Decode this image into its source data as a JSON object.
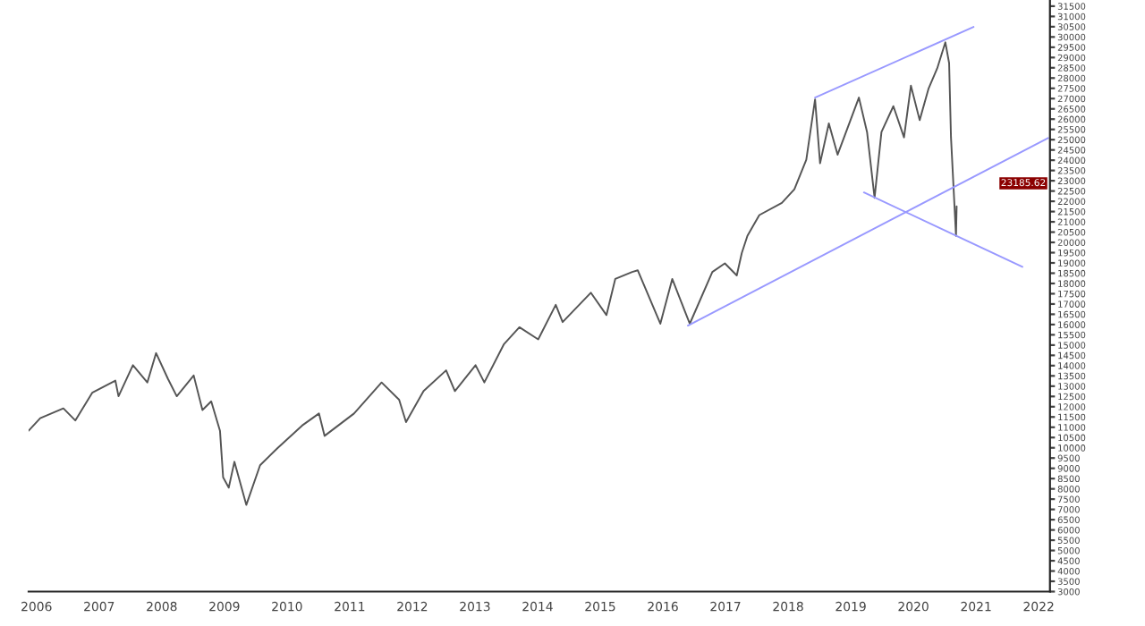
{
  "chart_data": {
    "type": "line",
    "series": [
      {
        "color": "#555555",
        "x": [
          2005.875,
          2006.06,
          2006.43,
          2006.62,
          2006.89,
          2007.26,
          2007.31,
          2007.54,
          2007.77,
          2007.91,
          2008.1,
          2008.24,
          2008.51,
          2008.65,
          2008.79,
          2008.93,
          2008.98,
          2009.07,
          2009.16,
          2009.35,
          2009.57,
          2009.85,
          2010.24,
          2010.51,
          2010.6,
          2011.07,
          2011.51,
          2011.79,
          2011.9,
          2012.18,
          2012.54,
          2012.68,
          2013.01,
          2013.15,
          2013.46,
          2013.71,
          2014.01,
          2014.29,
          2014.4,
          2014.85,
          2015.1,
          2015.24,
          2015.51,
          2015.6,
          2015.96,
          2016.15,
          2016.43,
          2016.79,
          2016.99,
          2017.18,
          2017.26,
          2017.35,
          2017.54,
          2017.9,
          2018.1,
          2018.29,
          2018.43,
          2018.51,
          2018.65,
          2018.79,
          2019.13,
          2019.26,
          2019.38,
          2019.49,
          2019.68,
          2019.85,
          2019.96,
          2020.1,
          2020.24,
          2020.38,
          2020.51,
          2020.57,
          2020.6,
          2020.68,
          2020.69
        ],
        "values": [
          10830,
          11440,
          11920,
          11330,
          12680,
          13270,
          12510,
          14020,
          13180,
          14610,
          13350,
          12510,
          13520,
          11840,
          12260,
          10830,
          8560,
          8060,
          9320,
          7220,
          9150,
          9990,
          11080,
          11670,
          10580,
          11670,
          13180,
          12340,
          11250,
          12760,
          13770,
          12760,
          14020,
          13180,
          15030,
          15870,
          15280,
          16960,
          16120,
          17550,
          16460,
          18220,
          18560,
          18640,
          16040,
          18220,
          16040,
          18560,
          18980,
          18390,
          19480,
          20320,
          21330,
          21920,
          22590,
          24020,
          26960,
          23850,
          25790,
          24270,
          27050,
          25370,
          22170,
          25370,
          26630,
          25110,
          27630,
          25950,
          27470,
          28470,
          29740,
          28730,
          25110,
          20320,
          21750
        ]
      },
      {
        "color": "#9999ff",
        "x": [
          2018.43,
          2020.96
        ],
        "values": [
          27050,
          30490
        ]
      },
      {
        "color": "#9999ff",
        "x": [
          2019.21,
          2021.74
        ],
        "values": [
          22430,
          18810
        ]
      },
      {
        "color": "#9999ff",
        "x": [
          2016.4,
          2022.15
        ],
        "values": [
          15950,
          25080
        ]
      }
    ],
    "xlim": [
      2005.875,
      2022.18
    ],
    "xticks": [
      2006,
      2007,
      2008,
      2009,
      2010,
      2011,
      2012,
      2013,
      2014,
      2015,
      2016,
      2017,
      2018,
      2019,
      2020,
      2021,
      2022
    ],
    "ylim": [
      3000,
      31800
    ],
    "yticks": [
      3000,
      3500,
      4000,
      4500,
      5000,
      5500,
      6000,
      6500,
      7000,
      7500,
      8000,
      8500,
      9000,
      9500,
      10000,
      10500,
      11000,
      11500,
      12000,
      12500,
      13000,
      13500,
      14000,
      14500,
      15000,
      15500,
      16000,
      16500,
      17000,
      17500,
      18000,
      18500,
      19000,
      19500,
      20000,
      20500,
      21000,
      21500,
      22000,
      22500,
      23000,
      23500,
      24000,
      24500,
      25000,
      25500,
      26000,
      26500,
      27000,
      27500,
      28000,
      28500,
      29000,
      29500,
      30000,
      30500,
      31000,
      31500
    ],
    "annotations": [
      "23185.62"
    ],
    "grid": false,
    "legend": false
  }
}
